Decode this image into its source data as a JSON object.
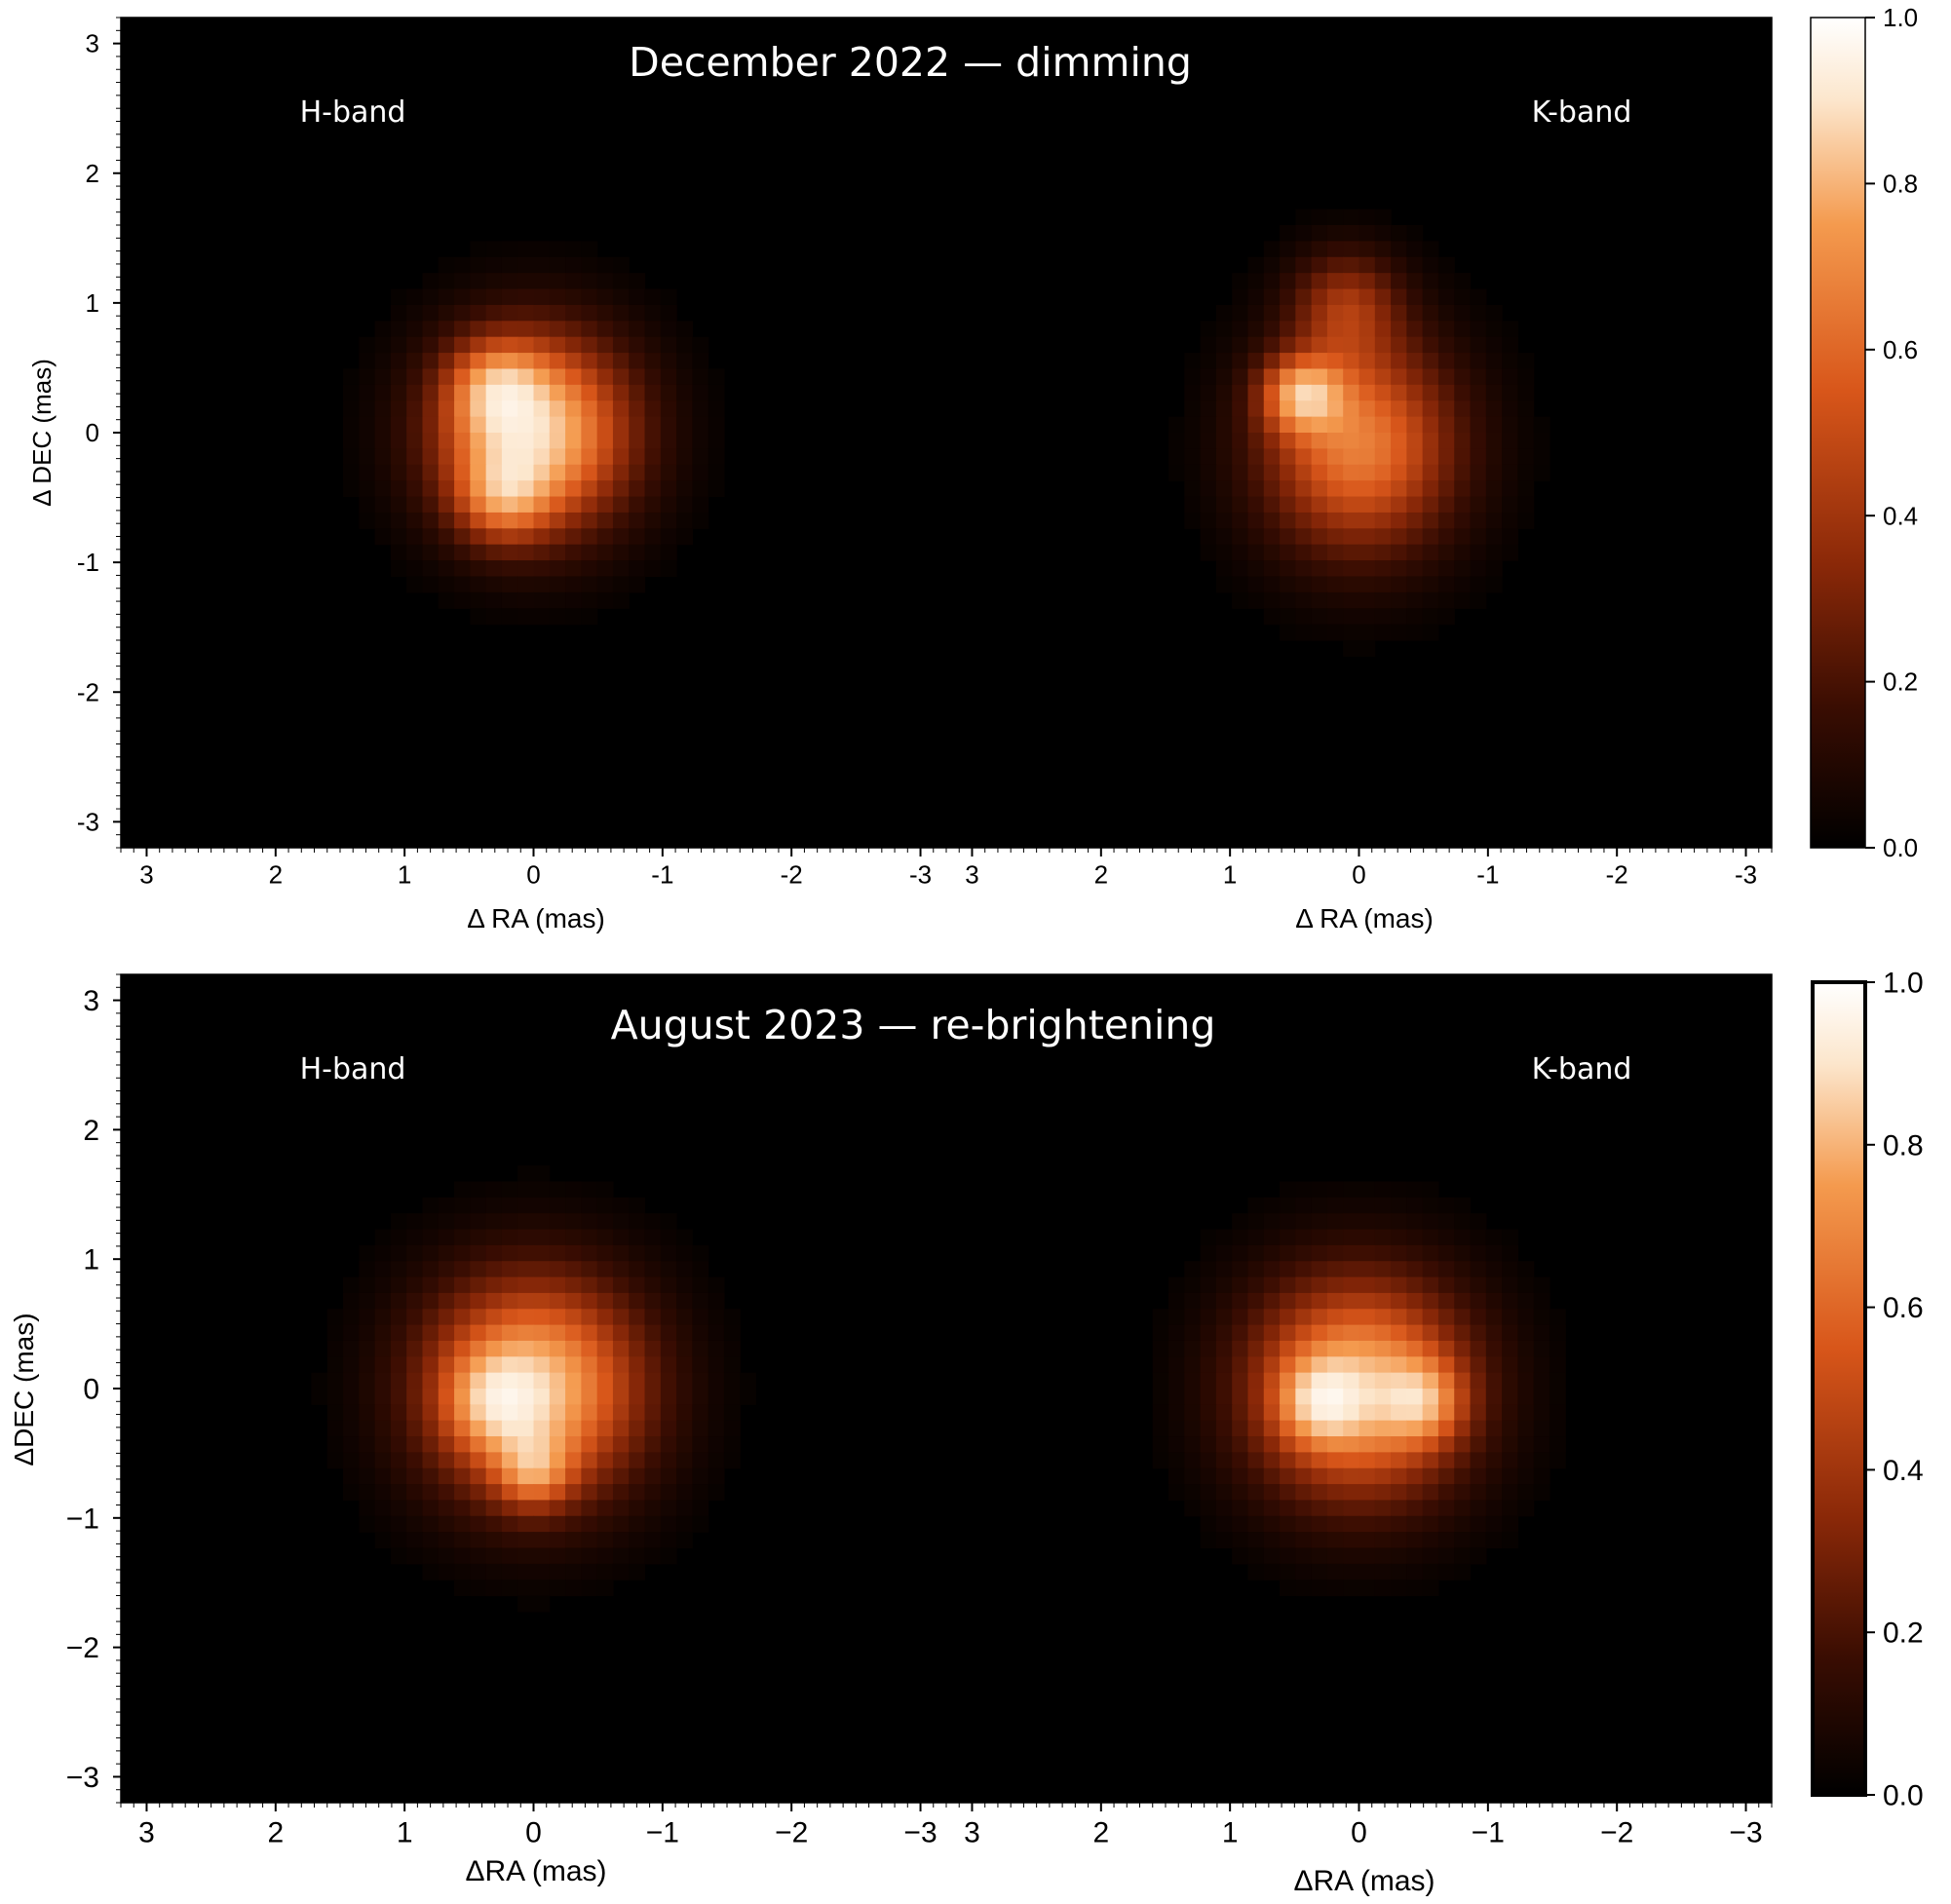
{
  "chart_data": [
    {
      "type": "heatmap",
      "title": "December 2022 — dimming",
      "ylabel": "Δ DEC (mas)",
      "xlabel": "Δ RA (mas)",
      "panels": [
        {
          "label": "H-band",
          "xlim": [
            3.2,
            -3.2
          ],
          "ylim": [
            -3.2,
            3.2
          ],
          "blobs": [
            {
              "x": 0.0,
              "y": 0.0,
              "sx": 0.55,
              "sy": 0.55,
              "amp": 0.78
            },
            {
              "x": 0.3,
              "y": 0.35,
              "sx": 0.25,
              "sy": 0.25,
              "amp": 0.3
            },
            {
              "x": 0.25,
              "y": -0.5,
              "sx": 0.25,
              "sy": 0.25,
              "amp": 0.3
            }
          ]
        },
        {
          "label": "K-band",
          "xlim": [
            3.2,
            -3.2
          ],
          "ylim": [
            -3.2,
            3.2
          ],
          "blobs": [
            {
              "x": 0.0,
              "y": -0.1,
              "sx": 0.55,
              "sy": 0.6,
              "amp": 0.6
            },
            {
              "x": 0.45,
              "y": 0.3,
              "sx": 0.22,
              "sy": 0.2,
              "amp": 0.45
            },
            {
              "x": 0.1,
              "y": 1.0,
              "sx": 0.3,
              "sy": 0.3,
              "amp": 0.3
            }
          ]
        }
      ],
      "colorbar": {
        "min": 0.0,
        "max": 1.0,
        "ticks": [
          "0.0",
          "0.2",
          "0.4",
          "0.6",
          "0.8",
          "1.0"
        ]
      },
      "xticks": [
        "3",
        "2",
        "1",
        "0",
        "-1",
        "-2",
        "-3"
      ],
      "yticks": [
        "3",
        "2",
        "1",
        "0",
        "-1",
        "-2",
        "-3"
      ],
      "colormap": [
        "#000000",
        "#3a0d02",
        "#8a2808",
        "#d8561a",
        "#f49a4e",
        "#fce6cc",
        "#ffffff"
      ]
    },
    {
      "type": "heatmap",
      "title": "August 2023 — re-brightening",
      "ylabel": "ΔDEC (mas)",
      "xlabel": "ΔRA (mas)",
      "panels": [
        {
          "label": "H-band",
          "xlim": [
            3.2,
            -3.2
          ],
          "ylim": [
            -3.2,
            3.2
          ],
          "blobs": [
            {
              "x": 0.0,
              "y": 0.0,
              "sx": 0.62,
              "sy": 0.62,
              "amp": 0.75
            },
            {
              "x": 0.0,
              "y": -0.65,
              "sx": 0.2,
              "sy": 0.2,
              "amp": 0.3
            },
            {
              "x": 0.3,
              "y": -0.1,
              "sx": 0.25,
              "sy": 0.25,
              "amp": 0.25
            }
          ]
        },
        {
          "label": "K-band",
          "xlim": [
            3.2,
            -3.2
          ],
          "ylim": [
            -3.2,
            3.2
          ],
          "blobs": [
            {
              "x": 0.0,
              "y": 0.0,
              "sx": 0.62,
              "sy": 0.62,
              "amp": 0.72
            },
            {
              "x": 0.3,
              "y": -0.1,
              "sx": 0.22,
              "sy": 0.22,
              "amp": 0.3
            },
            {
              "x": -0.5,
              "y": -0.1,
              "sx": 0.22,
              "sy": 0.22,
              "amp": 0.3
            }
          ]
        }
      ],
      "colorbar": {
        "min": 0.0,
        "max": 1.0,
        "ticks": [
          "0.0",
          "0.2",
          "0.4",
          "0.6",
          "0.8",
          "1.0"
        ]
      },
      "xticks": [
        "3",
        "2",
        "1",
        "0",
        "−1",
        "−2",
        "−3"
      ],
      "yticks": [
        "3",
        "2",
        "1",
        "0",
        "−1",
        "−2",
        "−3"
      ],
      "colormap": [
        "#000000",
        "#3a0d02",
        "#8a2808",
        "#d8561a",
        "#f49a4e",
        "#fce6cc",
        "#ffffff"
      ]
    }
  ]
}
